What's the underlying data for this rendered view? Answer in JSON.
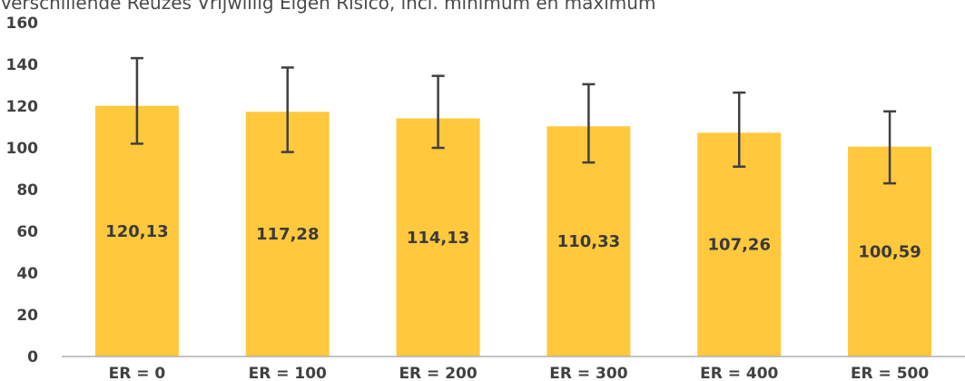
{
  "chart_data": {
    "type": "bar",
    "title": "Verschillende Reuzes Vrijwillig Eigen Risico, incl. minimum en maximum",
    "categories": [
      "ER = 0",
      "ER = 100",
      "ER = 200",
      "ER = 300",
      "ER = 400",
      "ER = 500"
    ],
    "values": [
      120.13,
      117.28,
      114.13,
      110.33,
      107.26,
      100.59
    ],
    "value_labels": [
      "120,13",
      "117,28",
      "114,13",
      "110,33",
      "107,26",
      "100,59"
    ],
    "error_min": [
      102,
      98,
      100,
      93,
      91,
      83
    ],
    "error_max": [
      143,
      138.5,
      134.5,
      130.5,
      126.5,
      117.5
    ],
    "ylim": [
      0,
      160
    ],
    "yticks": [
      "0",
      "20",
      "40",
      "60",
      "80",
      "100",
      "120",
      "140",
      "160"
    ],
    "xlabel": "",
    "ylabel": "",
    "grid": false,
    "legend": "none",
    "colors": {
      "bar": "#FFC83D",
      "error_bar": "#404040",
      "axis": "#b0b0b0",
      "text": "#404040"
    }
  }
}
